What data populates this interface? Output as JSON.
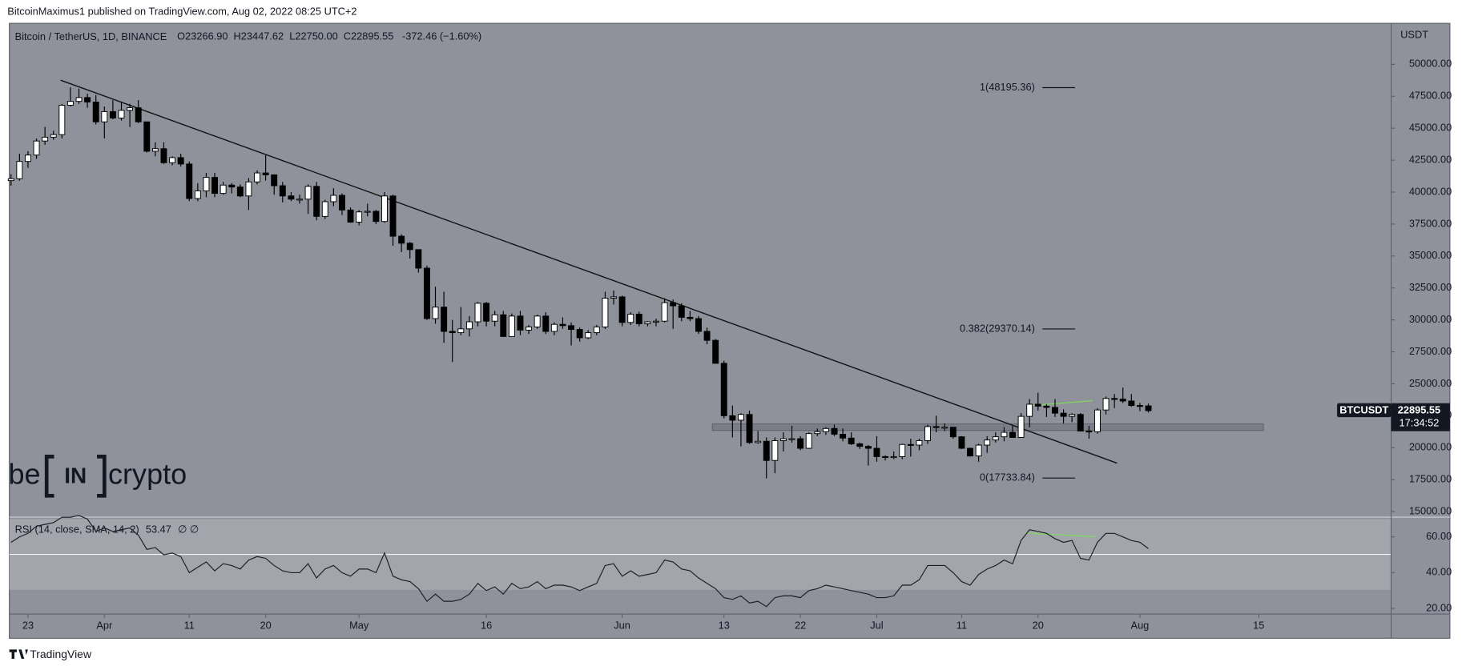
{
  "header": {
    "publisher": "BitcoinMaximus1 published on TradingView.com, Aug 02, 2022 08:25 UTC+2",
    "symbol": "Bitcoin / TetherUS, 1D, BINANCE",
    "o_label": "O",
    "o": "23266.90",
    "h_label": "H",
    "h": "23447.62",
    "l_label": "L",
    "l": "22750.00",
    "c_label": "C",
    "c": "22895.55",
    "change": "-372.46 (−1.60%)",
    "currency": "USDT",
    "tag_symbol": "BTCUSDT",
    "tag_price": "22895.55",
    "tag_timer": "17:34:52",
    "fib_1": "1(48195.36)",
    "fib_0382": "0.382(29370.14)",
    "fib_0": "0(17733.84)",
    "logo_a": "be",
    "logo_b": "IN",
    "logo_c": "crypto",
    "footer": "TradingView"
  },
  "chart_data": [
    {
      "type": "candlestick",
      "candles": [
        [
          40900,
          41400,
          40500,
          41050
        ],
        [
          41050,
          43000,
          40900,
          42400
        ],
        [
          42400,
          43200,
          41900,
          42900
        ],
        [
          42900,
          44200,
          42600,
          44000
        ],
        [
          44000,
          45100,
          43700,
          44300
        ],
        [
          44300,
          44800,
          44100,
          44500
        ],
        [
          44500,
          46900,
          44200,
          46800
        ],
        [
          46800,
          48200,
          46700,
          47100
        ],
        [
          47100,
          48100,
          46900,
          47400
        ],
        [
          47400,
          47700,
          46600,
          47050
        ],
        [
          47050,
          47600,
          45300,
          45500
        ],
        [
          45500,
          46700,
          44200,
          46300
        ],
        [
          46300,
          47200,
          45700,
          45800
        ],
        [
          45800,
          47000,
          45600,
          46400
        ],
        [
          46400,
          46900,
          45100,
          46600
        ],
        [
          46600,
          47200,
          45400,
          45500
        ],
        [
          45500,
          45500,
          43100,
          43200
        ],
        [
          43200,
          43900,
          42800,
          43400
        ],
        [
          43400,
          43900,
          42200,
          42300
        ],
        [
          42300,
          42800,
          42100,
          42700
        ],
        [
          42700,
          43000,
          42000,
          42200
        ],
        [
          42200,
          42400,
          39300,
          39500
        ],
        [
          39500,
          40700,
          39300,
          40100
        ],
        [
          40100,
          41500,
          39600,
          41150
        ],
        [
          41150,
          41500,
          39600,
          39900
        ],
        [
          39900,
          40800,
          39800,
          40550
        ],
        [
          40550,
          40700,
          39900,
          40400
        ],
        [
          40400,
          40600,
          39600,
          39700
        ],
        [
          39700,
          41100,
          38600,
          40800
        ],
        [
          40800,
          41700,
          40600,
          41500
        ],
        [
          41500,
          42900,
          40900,
          41350
        ],
        [
          41350,
          41400,
          39800,
          40500
        ],
        [
          40500,
          40800,
          39200,
          39700
        ],
        [
          39700,
          40000,
          39300,
          39450
        ],
        [
          39450,
          39800,
          39100,
          39450
        ],
        [
          39450,
          40600,
          38300,
          40450
        ],
        [
          40450,
          40800,
          37800,
          38100
        ],
        [
          38100,
          39400,
          37900,
          39250
        ],
        [
          39250,
          40300,
          38900,
          39750
        ],
        [
          39750,
          39900,
          38200,
          38600
        ],
        [
          38600,
          38800,
          37600,
          37650
        ],
        [
          37650,
          38600,
          37400,
          38450
        ],
        [
          38450,
          39100,
          38100,
          38500
        ],
        [
          38500,
          38600,
          37500,
          37700
        ],
        [
          37700,
          40000,
          37600,
          39700
        ],
        [
          39700,
          39800,
          35800,
          36550
        ],
        [
          36550,
          36700,
          35300,
          36000
        ],
        [
          36000,
          36100,
          34800,
          35500
        ],
        [
          35500,
          35500,
          33700,
          34050
        ],
        [
          34050,
          34250,
          30000,
          30100
        ],
        [
          30100,
          32600,
          29700,
          31000
        ],
        [
          31000,
          32200,
          28200,
          29100
        ],
        [
          29100,
          30000,
          26700,
          29000
        ],
        [
          29000,
          31000,
          28800,
          29300
        ],
        [
          29300,
          30300,
          28700,
          29850
        ],
        [
          29850,
          31400,
          29500,
          31300
        ],
        [
          31300,
          31400,
          29500,
          29900
        ],
        [
          29900,
          30700,
          29500,
          30400
        ],
        [
          30400,
          30700,
          28700,
          28700
        ],
        [
          28700,
          30500,
          28700,
          30300
        ],
        [
          30300,
          30700,
          28800,
          29200
        ],
        [
          29200,
          29600,
          28900,
          29450
        ],
        [
          29450,
          30400,
          29300,
          30300
        ],
        [
          30300,
          30600,
          28900,
          29100
        ],
        [
          29100,
          29800,
          28800,
          29650
        ],
        [
          29650,
          30200,
          29300,
          29550
        ],
        [
          29550,
          29800,
          28000,
          29250
        ],
        [
          29250,
          29400,
          28300,
          28600
        ],
        [
          28600,
          29200,
          28500,
          29000
        ],
        [
          29000,
          29600,
          28800,
          29450
        ],
        [
          29450,
          32200,
          29300,
          31700
        ],
        [
          31700,
          32300,
          31200,
          31800
        ],
        [
          31800,
          31900,
          29500,
          29800
        ],
        [
          29800,
          30600,
          29600,
          30450
        ],
        [
          30450,
          30650,
          29500,
          29700
        ],
        [
          29700,
          29900,
          29500,
          29850
        ],
        [
          29850,
          30100,
          29500,
          29900
        ],
        [
          29900,
          31700,
          29800,
          31350
        ],
        [
          31350,
          31600,
          29300,
          31100
        ],
        [
          31100,
          31300,
          29900,
          30200
        ],
        [
          30200,
          30700,
          29900,
          30100
        ],
        [
          30100,
          30300,
          28900,
          29100
        ],
        [
          29100,
          29400,
          28100,
          28400
        ],
        [
          28400,
          28500,
          26600,
          26600
        ],
        [
          26600,
          26800,
          22300,
          22500
        ],
        [
          22500,
          23300,
          20800,
          22150
        ],
        [
          22150,
          22700,
          20100,
          22600
        ],
        [
          22600,
          22900,
          20300,
          20400
        ],
        [
          20400,
          21300,
          20300,
          20500
        ],
        [
          20500,
          20800,
          17600,
          19000
        ],
        [
          19000,
          20800,
          18000,
          20550
        ],
        [
          20550,
          21200,
          19700,
          20700
        ],
        [
          20700,
          21700,
          20400,
          20700
        ],
        [
          20700,
          20900,
          19800,
          19950
        ],
        [
          19950,
          21200,
          19900,
          21100
        ],
        [
          21100,
          21500,
          20900,
          21250
        ],
        [
          21250,
          21600,
          21000,
          21500
        ],
        [
          21500,
          21800,
          20900,
          21050
        ],
        [
          21050,
          21500,
          20500,
          20750
        ],
        [
          20750,
          21200,
          20200,
          20300
        ],
        [
          20300,
          20400,
          19900,
          20100
        ],
        [
          20100,
          20200,
          18600,
          19950
        ],
        [
          19950,
          20900,
          18900,
          19300
        ],
        [
          19300,
          19400,
          19000,
          19250
        ],
        [
          19250,
          19700,
          19100,
          19300
        ],
        [
          19300,
          20300,
          19100,
          20250
        ],
        [
          20250,
          20700,
          19300,
          20200
        ],
        [
          20200,
          20700,
          19800,
          20550
        ],
        [
          20550,
          21800,
          20300,
          21650
        ],
        [
          21650,
          22500,
          21200,
          21600
        ],
        [
          21600,
          21900,
          21300,
          21600
        ],
        [
          21600,
          21600,
          20700,
          20850
        ],
        [
          20850,
          20900,
          19900,
          19950
        ],
        [
          19950,
          20000,
          19300,
          19350
        ],
        [
          19350,
          20300,
          18900,
          20200
        ],
        [
          20200,
          20900,
          19600,
          20600
        ],
        [
          20600,
          21200,
          20400,
          20850
        ],
        [
          20850,
          21600,
          20500,
          21200
        ],
        [
          21200,
          21700,
          20800,
          20800
        ],
        [
          20800,
          22700,
          20800,
          22450
        ],
        [
          22450,
          23800,
          21600,
          23400
        ],
        [
          23400,
          24300,
          22900,
          23250
        ],
        [
          23250,
          23400,
          22400,
          23150
        ],
        [
          23150,
          23800,
          22400,
          22700
        ],
        [
          22700,
          23000,
          21900,
          22450
        ],
        [
          22450,
          22700,
          22000,
          22600
        ],
        [
          22600,
          22700,
          21300,
          21300
        ],
        [
          21300,
          21700,
          20700,
          21250
        ],
        [
          21250,
          23100,
          21100,
          22950
        ],
        [
          22950,
          24000,
          22600,
          23850
        ],
        [
          23850,
          24200,
          23100,
          23800
        ],
        [
          23800,
          24700,
          23500,
          23650
        ],
        [
          23650,
          24200,
          23200,
          23300
        ],
        [
          23300,
          23500,
          22850,
          23270
        ],
        [
          23266.9,
          23447.62,
          22750,
          22895.55
        ]
      ],
      "up_color": "#ffffff",
      "down_color": "#000000",
      "xlim": [
        -0.2,
        162.6
      ],
      "xticks": [
        {
          "value": 2,
          "label": "23"
        },
        {
          "value": 11,
          "label": "Apr"
        },
        {
          "value": 21,
          "label": "11"
        },
        {
          "value": 30,
          "label": "20"
        },
        {
          "value": 41,
          "label": "May"
        },
        {
          "value": 56,
          "label": "16"
        },
        {
          "value": 72,
          "label": "Jun"
        },
        {
          "value": 84,
          "label": "13"
        },
        {
          "value": 93,
          "label": "22"
        },
        {
          "value": 102,
          "label": "Jul"
        },
        {
          "value": 112,
          "label": "11"
        },
        {
          "value": 121,
          "label": "20"
        },
        {
          "value": 133,
          "label": "Aug"
        },
        {
          "value": 147,
          "label": "15"
        }
      ],
      "ylim": [
        14562,
        53208
      ],
      "yticks": [
        {
          "value": 15000,
          "label": "15000.00"
        },
        {
          "value": 17500,
          "label": "17500.00"
        },
        {
          "value": 20000,
          "label": "20000.00"
        },
        {
          "value": 22500,
          "label": "22500.00"
        },
        {
          "value": 25000,
          "label": "25000.00"
        },
        {
          "value": 27500,
          "label": "27500.00"
        },
        {
          "value": 30000,
          "label": "30000.00"
        },
        {
          "value": 32500,
          "label": "32500.00"
        },
        {
          "value": 35000,
          "label": "35000.00"
        },
        {
          "value": 37500,
          "label": "37500.00"
        },
        {
          "value": 40000,
          "label": "40000.00"
        },
        {
          "value": 42500,
          "label": "42500.00"
        },
        {
          "value": 45000,
          "label": "45000.00"
        },
        {
          "value": 47500,
          "label": "47500.00"
        },
        {
          "value": 50000,
          "label": "50000.00"
        }
      ],
      "grid": false
    },
    {
      "type": "line",
      "title": "RSI (14, close, SMA, 14, 2)",
      "last": "53.47",
      "extra": "∅  ∅",
      "color": "#1e1e24",
      "values": [
        57,
        60,
        62,
        66,
        67,
        68,
        71,
        71,
        72,
        70,
        63,
        65,
        63,
        64,
        65,
        61,
        53,
        54,
        50,
        51,
        49,
        40,
        43,
        46,
        41,
        45,
        44,
        42,
        47,
        49,
        48,
        44,
        41,
        40,
        40,
        45,
        37,
        42,
        44,
        40,
        38,
        42,
        42,
        40,
        51,
        38,
        36,
        35,
        31,
        24,
        28,
        24,
        24,
        25,
        28,
        34,
        30,
        32,
        28,
        34,
        31,
        32,
        35,
        31,
        33,
        33,
        32,
        30,
        32,
        34,
        44,
        45,
        38,
        41,
        38,
        39,
        40,
        47,
        46,
        42,
        41,
        37,
        34,
        31,
        26,
        25,
        27,
        23,
        24,
        21,
        26,
        27,
        27,
        26,
        30,
        31,
        33,
        32,
        31,
        30,
        29,
        28,
        26,
        26,
        27,
        33,
        33,
        36,
        44,
        44,
        44,
        40,
        35,
        33,
        39,
        42,
        44,
        47,
        45,
        58,
        64,
        63,
        62,
        59,
        57,
        58,
        48,
        47,
        57,
        62,
        62,
        60,
        58,
        57,
        53.47
      ],
      "ylim": [
        16.84,
        71.05
      ],
      "yticks": [
        {
          "value": 20,
          "label": "20.00"
        },
        {
          "value": 40,
          "label": "40.00"
        },
        {
          "value": 60,
          "label": "60.00"
        }
      ]
    }
  ]
}
